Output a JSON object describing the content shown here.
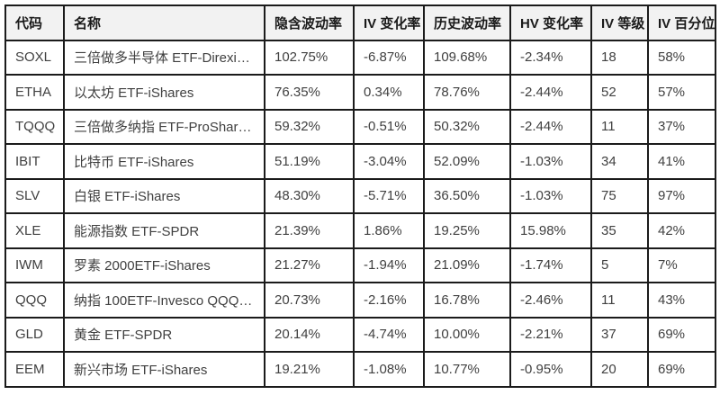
{
  "colors": {
    "page_bg": "#ffffff",
    "header_bg": "#f2f2f2",
    "grid_border": "#1b1b1b",
    "header_text": "#1a1a1a",
    "cell_text": "#404040"
  },
  "chart_data": {
    "type": "table",
    "columns": [
      "代码",
      "名称",
      "隐含波动率",
      "IV 变化率",
      "历史波动率",
      "HV 变化率",
      "IV 等级",
      "IV 百分位"
    ],
    "rows": [
      [
        "SOXL",
        "三倍做多半导体 ETF-Direxi…",
        "102.75%",
        "-6.87%",
        "109.68%",
        "-2.34%",
        "18",
        "58%"
      ],
      [
        "ETHA",
        "以太坊 ETF-iShares",
        "76.35%",
        "0.34%",
        "78.76%",
        "-2.44%",
        "52",
        "57%"
      ],
      [
        "TQQQ",
        "三倍做多纳指 ETF-ProShar…",
        "59.32%",
        "-0.51%",
        "50.32%",
        "-2.44%",
        "11",
        "37%"
      ],
      [
        "IBIT",
        "比特币 ETF-iShares",
        "51.19%",
        "-3.04%",
        "52.09%",
        "-1.03%",
        "34",
        "41%"
      ],
      [
        "SLV",
        "白银 ETF-iShares",
        "48.30%",
        "-5.71%",
        "36.50%",
        "-1.03%",
        "75",
        "97%"
      ],
      [
        "XLE",
        "能源指数 ETF-SPDR",
        "21.39%",
        "1.86%",
        "19.25%",
        "15.98%",
        "35",
        "42%"
      ],
      [
        "IWM",
        "罗素 2000ETF-iShares",
        "21.27%",
        "-1.94%",
        "21.09%",
        "-1.74%",
        "5",
        "7%"
      ],
      [
        "QQQ",
        "纳指 100ETF-Invesco QQQ…",
        "20.73%",
        "-2.16%",
        "16.78%",
        "-2.46%",
        "11",
        "43%"
      ],
      [
        "GLD",
        "黄金 ETF-SPDR",
        "20.14%",
        "-4.74%",
        "10.00%",
        "-2.21%",
        "37",
        "69%"
      ],
      [
        "EEM",
        "新兴市场 ETF-iShares",
        "19.21%",
        "-1.08%",
        "10.77%",
        "-0.95%",
        "20",
        "69%"
      ]
    ]
  }
}
